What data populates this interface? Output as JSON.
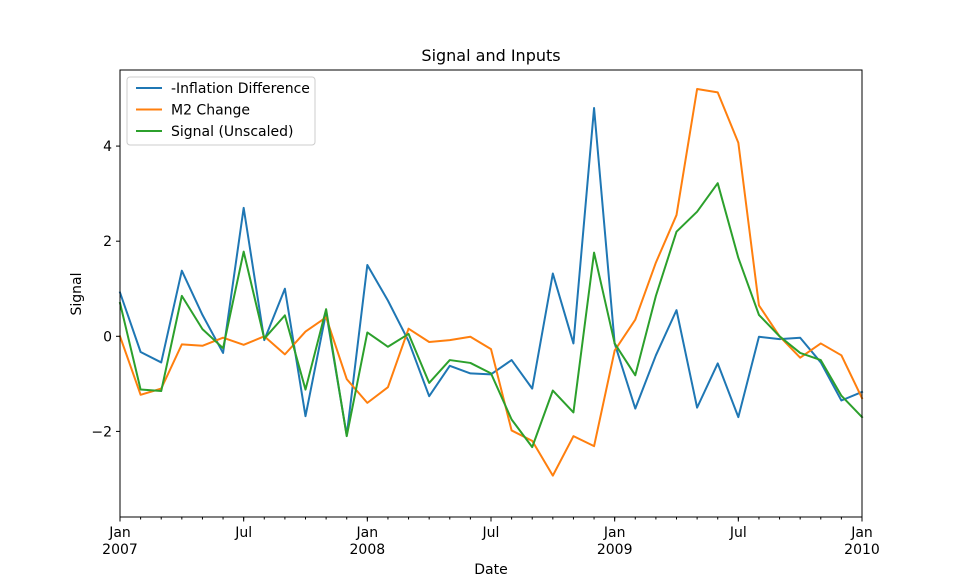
{
  "chart_data": {
    "type": "line",
    "title": "Signal and Inputs",
    "xlabel": "Date",
    "ylabel": "Signal",
    "ylim": [
      -3.8,
      5.6
    ],
    "yticks": [
      -2,
      0,
      2,
      4
    ],
    "ytick_labels": [
      "−2",
      "0",
      "2",
      "4"
    ],
    "xlim": [
      "2007-01",
      "2010-01"
    ],
    "xticks": [
      {
        "month_index": 0,
        "label": "Jan",
        "sublabel": "2007"
      },
      {
        "month_index": 6,
        "label": "Jul",
        "sublabel": ""
      },
      {
        "month_index": 12,
        "label": "Jan",
        "sublabel": "2008"
      },
      {
        "month_index": 18,
        "label": "Jul",
        "sublabel": ""
      },
      {
        "month_index": 24,
        "label": "Jan",
        "sublabel": "2009"
      },
      {
        "month_index": 30,
        "label": "Jul",
        "sublabel": ""
      },
      {
        "month_index": 36,
        "label": "Jan",
        "sublabel": "2010"
      }
    ],
    "x": [
      "2007-01",
      "2007-02",
      "2007-03",
      "2007-04",
      "2007-05",
      "2007-06",
      "2007-07",
      "2007-08",
      "2007-09",
      "2007-10",
      "2007-11",
      "2007-12",
      "2008-01",
      "2008-02",
      "2008-03",
      "2008-04",
      "2008-05",
      "2008-06",
      "2008-07",
      "2008-08",
      "2008-09",
      "2008-10",
      "2008-11",
      "2008-12",
      "2009-01",
      "2009-02",
      "2009-03",
      "2009-04",
      "2009-05",
      "2009-06",
      "2009-07",
      "2009-08",
      "2009-09",
      "2009-10",
      "2009-11",
      "2009-12",
      "2010-01"
    ],
    "series": [
      {
        "name": "-Inflation Difference",
        "color": "#1f77b4",
        "values": [
          0.92,
          -0.33,
          -0.55,
          1.38,
          0.45,
          -0.35,
          2.7,
          -0.08,
          1.0,
          -1.68,
          0.5,
          -2.08,
          1.5,
          0.75,
          -0.1,
          -1.26,
          -0.62,
          -0.78,
          -0.8,
          -0.5,
          -1.1,
          1.32,
          -0.15,
          4.8,
          -0.15,
          -1.52,
          -0.4,
          0.55,
          -1.5,
          -0.57,
          -1.7,
          -0.01,
          -0.06,
          -0.03,
          -0.55,
          -1.35,
          -1.17
        ]
      },
      {
        "name": "M2 Change",
        "color": "#ff7f0e",
        "values": [
          0.0,
          -1.23,
          -1.1,
          -0.17,
          -0.2,
          -0.03,
          -0.18,
          0.0,
          -0.38,
          0.1,
          0.4,
          -0.9,
          -1.4,
          -1.07,
          0.16,
          -0.12,
          -0.08,
          -0.01,
          -0.27,
          -1.98,
          -2.2,
          -2.93,
          -2.1,
          -2.31,
          -0.3,
          0.35,
          1.55,
          2.55,
          5.2,
          5.13,
          4.07,
          0.65,
          0.0,
          -0.45,
          -0.15,
          -0.4,
          -1.3
        ]
      },
      {
        "name": "Signal (Unscaled)",
        "color": "#2ca02c",
        "values": [
          0.7,
          -1.12,
          -1.15,
          0.85,
          0.15,
          -0.25,
          1.78,
          -0.05,
          0.44,
          -1.12,
          0.57,
          -2.1,
          0.08,
          -0.22,
          0.05,
          -0.98,
          -0.5,
          -0.56,
          -0.78,
          -1.75,
          -2.33,
          -1.14,
          -1.6,
          1.76,
          -0.15,
          -0.82,
          0.85,
          2.2,
          2.62,
          3.22,
          1.65,
          0.45,
          0.0,
          -0.35,
          -0.5,
          -1.25,
          -1.7
        ]
      }
    ],
    "legend_position": "top-left",
    "grid": false
  }
}
